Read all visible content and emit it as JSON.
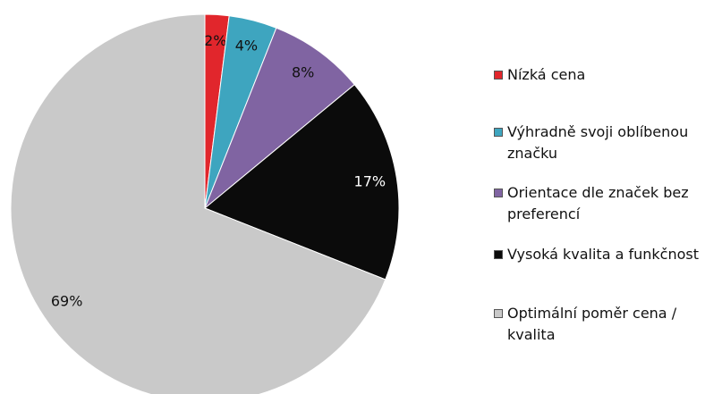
{
  "chart_data": {
    "type": "pie",
    "categories": [
      "Nízká cena",
      "Výhradně svoji oblíbenou značku",
      "Orientace dle značek bez preferencí",
      "Vysoká kvalita a funkčnost",
      "Optimální poměr cena / kvalita"
    ],
    "values": [
      2,
      4,
      8,
      17,
      69
    ],
    "value_labels": [
      "2%",
      "4%",
      "8%",
      "17%",
      "69%"
    ],
    "colors": [
      "#e1262c",
      "#3ea5bf",
      "#8064a2",
      "#0b0b0b",
      "#c9c9c9"
    ],
    "legend": "right"
  }
}
